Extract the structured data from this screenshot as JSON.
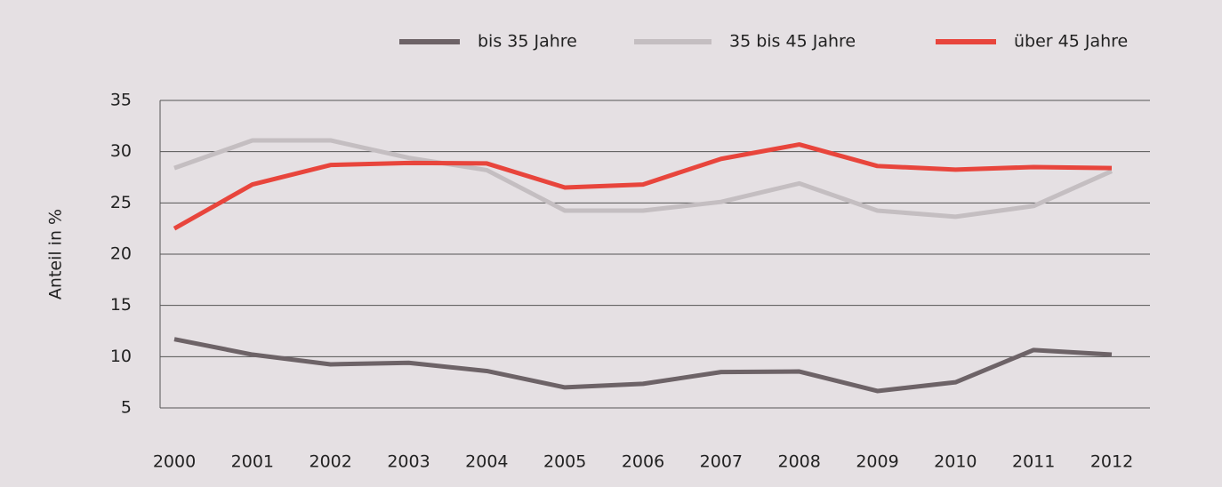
{
  "chart_data": {
    "type": "line",
    "y_label": "Anteil in %",
    "categories": [
      "2000",
      "2001",
      "2002",
      "2003",
      "2004",
      "2005",
      "2006",
      "2007",
      "2008",
      "2009",
      "2010",
      "2011",
      "2012"
    ],
    "series": [
      {
        "name": "bis 35 Jahre",
        "color": "#6d6367",
        "values": [
          11.7,
          10.2,
          9.25,
          9.4,
          8.6,
          7.0,
          7.35,
          8.5,
          8.55,
          6.65,
          7.5,
          10.65,
          10.2
        ]
      },
      {
        "name": "35 bis 45 Jahre",
        "color": "#c4bec1",
        "values": [
          28.4,
          31.1,
          31.1,
          29.4,
          28.2,
          24.25,
          24.25,
          25.1,
          26.9,
          24.25,
          23.65,
          24.7,
          28.1
        ]
      },
      {
        "name": "über 45 Jahre",
        "color": "#e8453c",
        "values": [
          22.5,
          26.8,
          28.7,
          28.9,
          28.85,
          26.5,
          26.8,
          29.3,
          30.7,
          28.6,
          28.25,
          28.5,
          28.4
        ]
      }
    ],
    "ylim": [
      5,
      35
    ],
    "yticks": [
      5,
      10,
      15,
      20,
      25,
      30,
      35
    ],
    "grid": true,
    "legend": "top"
  }
}
